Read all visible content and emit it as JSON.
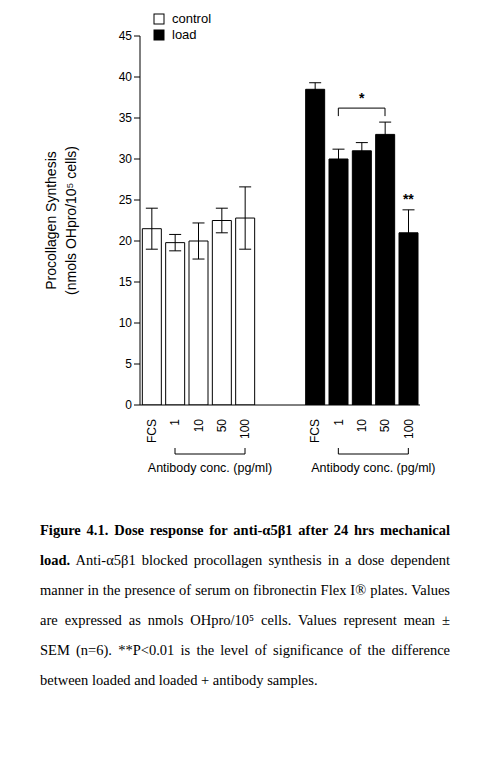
{
  "chart_data": {
    "type": "bar",
    "y_label": [
      "Procollagen Synthesis",
      "(nmols OHpro/10⁵ cells)"
    ],
    "categories": [
      "FCS",
      "1",
      "10",
      "50",
      "100",
      null,
      null,
      "FCS",
      "1",
      "10",
      "50",
      "100"
    ],
    "series": [
      {
        "name": "control",
        "color": "#ffffff",
        "values": [
          21.5,
          19.8,
          20,
          22.5,
          22.8,
          null,
          null,
          null,
          null,
          null,
          null,
          null
        ],
        "errors": [
          2.5,
          1,
          2.2,
          1.5,
          3.8,
          null,
          null,
          null,
          null,
          null,
          null,
          null
        ]
      },
      {
        "name": "load",
        "color": "#000000",
        "values": [
          null,
          null,
          null,
          null,
          null,
          null,
          null,
          38.5,
          30,
          31,
          33,
          21
        ],
        "errors": [
          null,
          null,
          null,
          null,
          null,
          null,
          null,
          0.8,
          1.2,
          1,
          1.5,
          2.8
        ]
      }
    ],
    "ylim": [
      0,
      45
    ],
    "yticks": [
      0,
      5,
      10,
      15,
      20,
      25,
      30,
      35,
      40,
      45
    ],
    "grid": false,
    "legend": "upper left",
    "group_labels": [
      {
        "text": "Antibody conc. (pg/ml)",
        "first": 1,
        "last": 4
      },
      {
        "text": "Antibody conc. (pg/ml)",
        "first": 8,
        "last": 11
      }
    ],
    "annotations": [
      {
        "text": "*",
        "first": 8,
        "last": 10
      },
      {
        "text": "**",
        "first": 11,
        "last": 11
      }
    ]
  },
  "caption": {
    "title": "Figure 4.1.  Dose response for anti-α5β1 after 24 hrs mechanical load.",
    "text": "Anti-α5β1 blocked procollagen synthesis in a dose dependent manner in the presence of serum on fibronectin Flex I® plates.  Values are expressed as nmols OHpro/10⁵ cells.  Values represent mean ± SEM (n=6).  **P<0.01 is the level of significance of the difference between loaded and loaded + antibody samples."
  }
}
